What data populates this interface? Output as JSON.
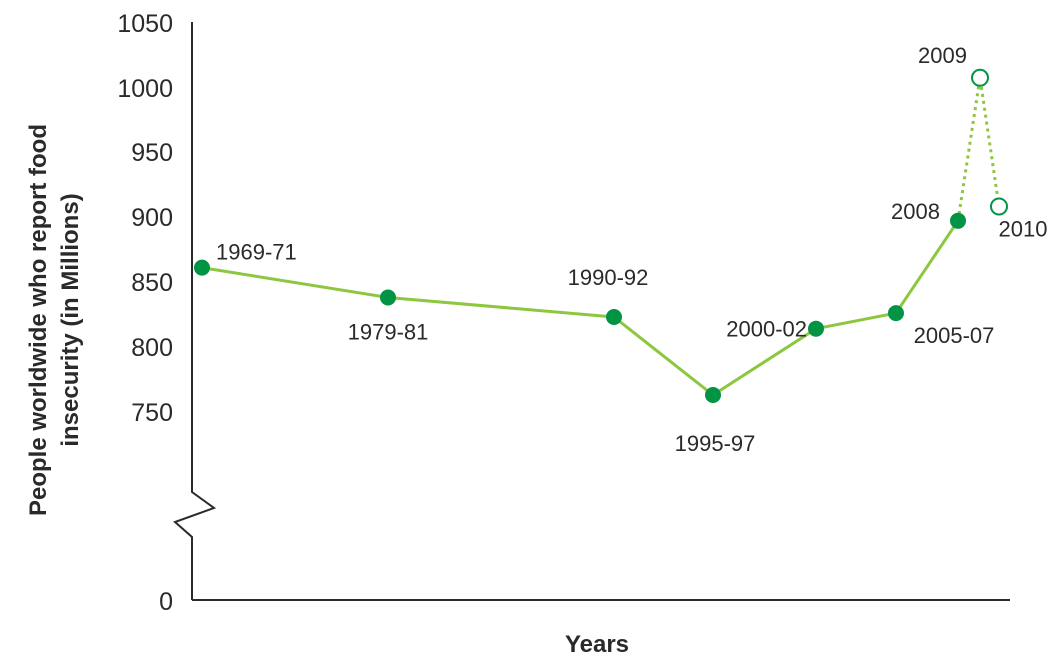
{
  "chart_data": {
    "type": "line",
    "title": "",
    "xlabel": "Years",
    "ylabel_lines": [
      "People worldwide who report food",
      "insecurity (in Millions)"
    ],
    "y_ticks": [
      "1050",
      "1000",
      "950",
      "900",
      "850",
      "800",
      "750",
      "0"
    ],
    "ylim": [
      750,
      1050
    ],
    "axis_break": true,
    "grid": false,
    "series": [
      {
        "style": "solid",
        "marker": "filled-circle",
        "points": [
          {
            "label": "1969-71",
            "value": 868
          },
          {
            "label": "1979-81",
            "value": 845
          },
          {
            "label": "1990-92",
            "value": 830
          },
          {
            "label": "1995-97",
            "value": 770
          },
          {
            "label": "2000-02",
            "value": 821
          },
          {
            "label": "2005-07",
            "value": 833
          },
          {
            "label": "2008",
            "value": 904
          }
        ]
      },
      {
        "style": "dotted",
        "marker": "open-circle",
        "points": [
          {
            "label": "2009",
            "value": 1014
          },
          {
            "label": "2010",
            "value": 915
          }
        ]
      }
    ],
    "colors": {
      "line": "#8dc63f",
      "marker": "#009444",
      "axis": "#2a2a2a"
    }
  }
}
